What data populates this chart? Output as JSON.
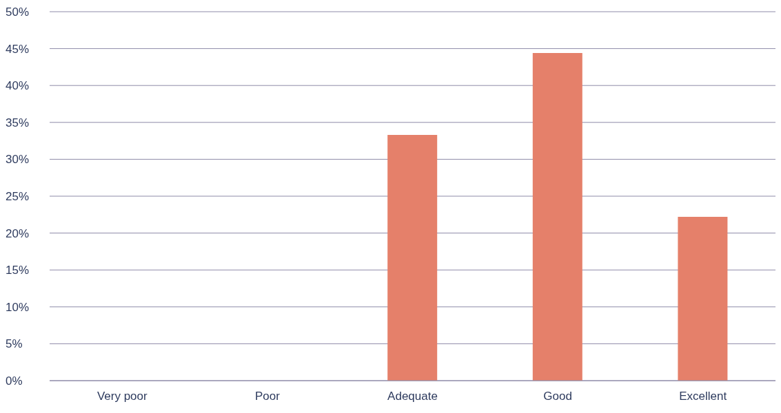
{
  "chart_data": {
    "type": "bar",
    "categories": [
      "Very poor",
      "Poor",
      "Adequate",
      "Good",
      "Excellent"
    ],
    "values": [
      0,
      0,
      33.3,
      44.4,
      22.2
    ],
    "color": "#e5806a",
    "ylim": [
      0,
      50
    ],
    "yticks": [
      {
        "value": 0,
        "label": "0%"
      },
      {
        "value": 5,
        "label": "5%"
      },
      {
        "value": 10,
        "label": "10%"
      },
      {
        "value": 15,
        "label": "15%"
      },
      {
        "value": 20,
        "label": "20%"
      },
      {
        "value": 25,
        "label": "25%"
      },
      {
        "value": 30,
        "label": "30%"
      },
      {
        "value": 35,
        "label": "35%"
      },
      {
        "value": 40,
        "label": "40%"
      },
      {
        "value": 45,
        "label": "45%"
      },
      {
        "value": 50,
        "label": "50%"
      }
    ],
    "grid": "y",
    "legend": false
  }
}
